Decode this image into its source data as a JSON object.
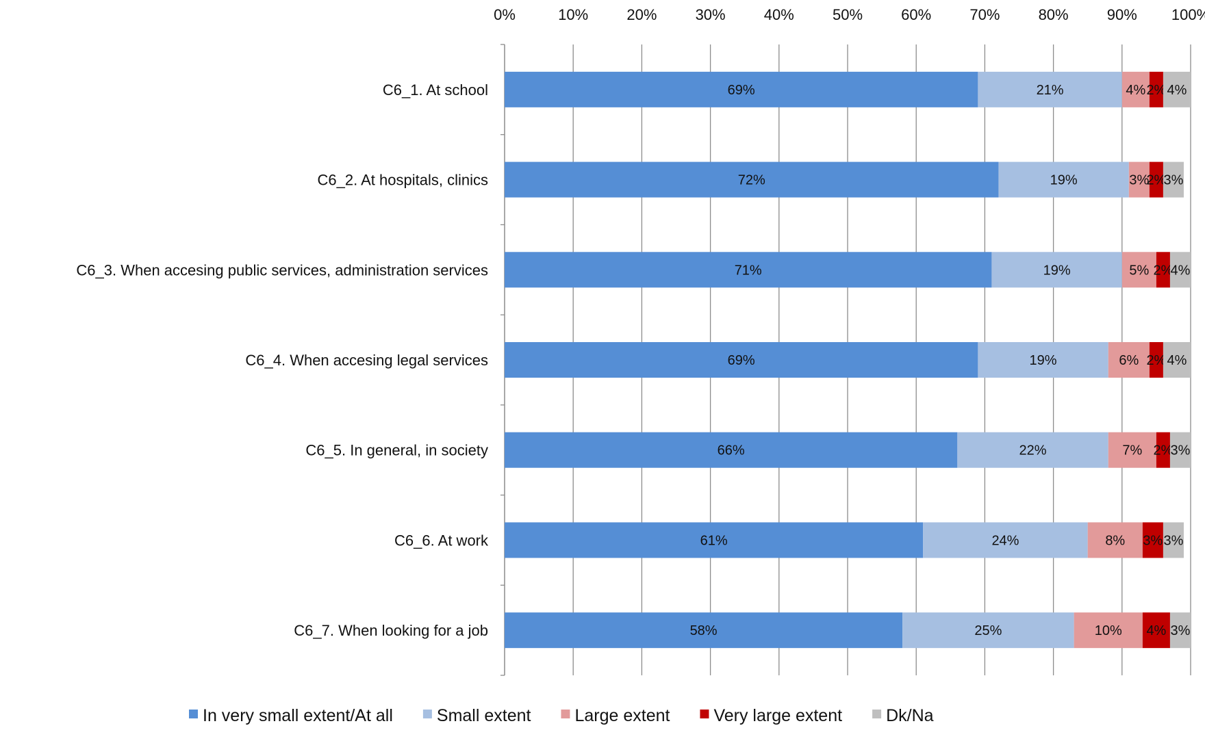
{
  "chart_data": {
    "type": "bar",
    "orientation": "horizontal",
    "stacked": true,
    "categories": [
      "C6_1. At school",
      "C6_2. At hospitals, clinics",
      "C6_3. When accesing public services, administration services",
      "C6_4. When accesing legal services",
      "C6_5. In general, in society",
      "C6_6. At work",
      "C6_7. When looking for a job"
    ],
    "series": [
      {
        "name": "In very small extent/At all",
        "color": "#558ed5",
        "values": [
          69,
          72,
          71,
          69,
          66,
          61,
          58
        ],
        "labels": [
          "69%",
          "72%",
          "71%",
          "69%",
          "66%",
          "61%",
          "58%"
        ]
      },
      {
        "name": "Small extent",
        "color": "#a6bfe1",
        "values": [
          21,
          19,
          19,
          19,
          22,
          24,
          25
        ],
        "labels": [
          "21%",
          "19%",
          "19%",
          "19%",
          "22%",
          "24%",
          "25%"
        ]
      },
      {
        "name": "Large extent",
        "color": "#e29a9a",
        "values": [
          4,
          3,
          5,
          6,
          7,
          8,
          10
        ],
        "labels": [
          "4%",
          "3%",
          "5%",
          "6%",
          "7%",
          "8%",
          "10%"
        ]
      },
      {
        "name": "Very large extent",
        "color": "#c00000",
        "values": [
          2,
          2,
          2,
          2,
          2,
          3,
          4
        ],
        "labels": [
          "2%",
          "2%",
          "2%",
          "2%",
          "2%",
          "3%",
          "4%"
        ]
      },
      {
        "name": "Dk/Na",
        "color": "#bfbfbf",
        "values": [
          4,
          3,
          4,
          4,
          3,
          3,
          3
        ],
        "labels": [
          "4%",
          "3%",
          "4%",
          "4%",
          "3%",
          "3%",
          "3%"
        ]
      }
    ],
    "x_ticks": [
      "0%",
      "10%",
      "20%",
      "30%",
      "40%",
      "50%",
      "60%",
      "70%",
      "80%",
      "90%",
      "100%"
    ],
    "xlim": [
      0,
      100
    ],
    "axis_position": "top",
    "grid": true,
    "legend_position": "bottom"
  }
}
